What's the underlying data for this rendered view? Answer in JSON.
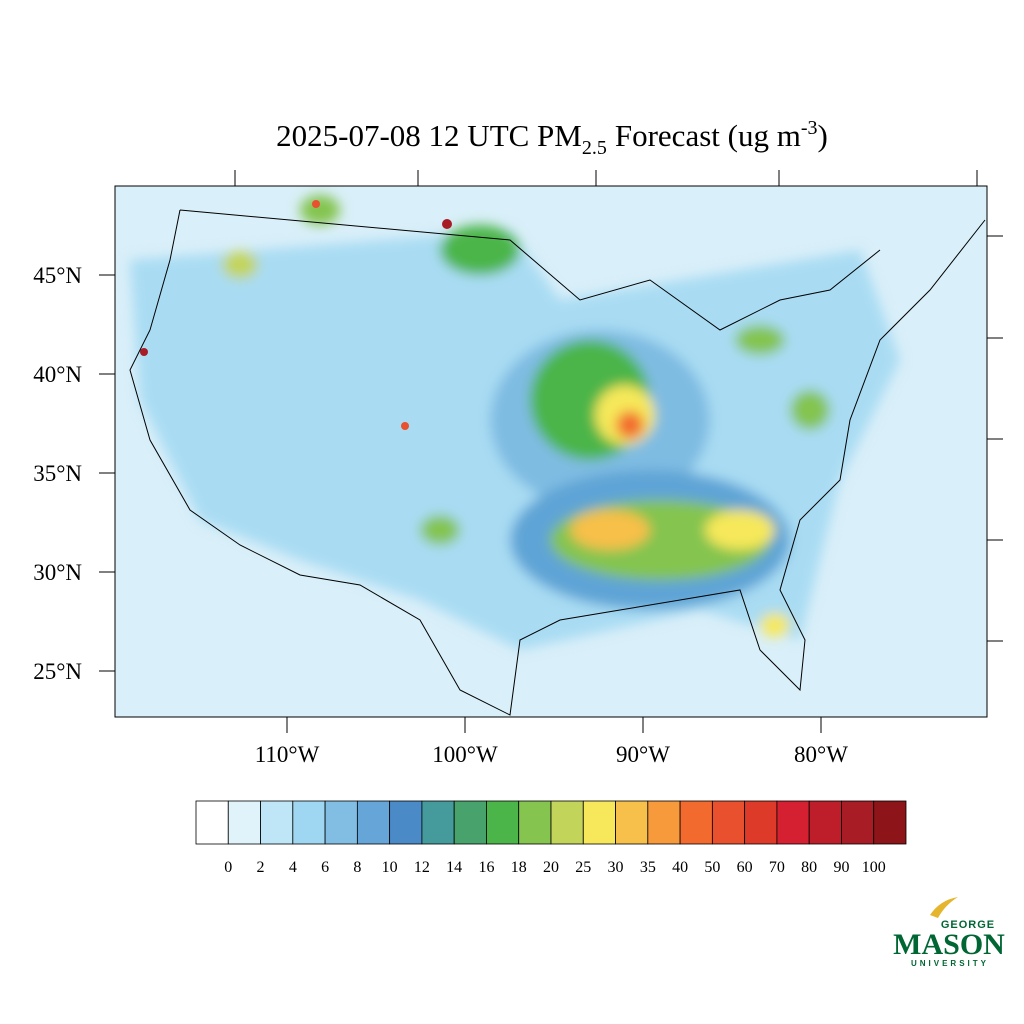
{
  "title": {
    "prefix": "2025-07-08 12 UTC PM",
    "subscript": "2.5",
    "middle": "Forecast (ug m",
    "superscript": "-3",
    "suffix": ")"
  },
  "lat_labels": [
    {
      "value": 45,
      "label": "45°N"
    },
    {
      "value": 40,
      "label": "40°N"
    },
    {
      "value": 35,
      "label": "35°N"
    },
    {
      "value": 30,
      "label": "30°N"
    },
    {
      "value": 25,
      "label": "25°N"
    }
  ],
  "lon_labels": [
    {
      "value": 110,
      "label": "110°W"
    },
    {
      "value": 100,
      "label": "100°W"
    },
    {
      "value": 90,
      "label": "90°W"
    },
    {
      "value": 80,
      "label": "80°W"
    }
  ],
  "colorbar": {
    "levels": [
      0,
      2,
      4,
      6,
      8,
      10,
      12,
      14,
      16,
      18,
      20,
      25,
      30,
      35,
      40,
      50,
      60,
      70,
      80,
      90,
      100
    ],
    "colors": [
      "#ffffff",
      "#e0f3fb",
      "#bfe6f7",
      "#9fd7f2",
      "#82bde3",
      "#66a5d8",
      "#4a8ac7",
      "#459b9b",
      "#47a36b",
      "#4cb54a",
      "#84c44f",
      "#c3d45a",
      "#f6e85a",
      "#f7c04a",
      "#f79a3c",
      "#f26a2e",
      "#e9502d",
      "#de3a29",
      "#d42030",
      "#bd1e2a",
      "#a81c25",
      "#8d1519"
    ]
  },
  "logo": {
    "top": "GEORGE",
    "name": "MASON",
    "bottom": "UNIVERSITY"
  }
}
